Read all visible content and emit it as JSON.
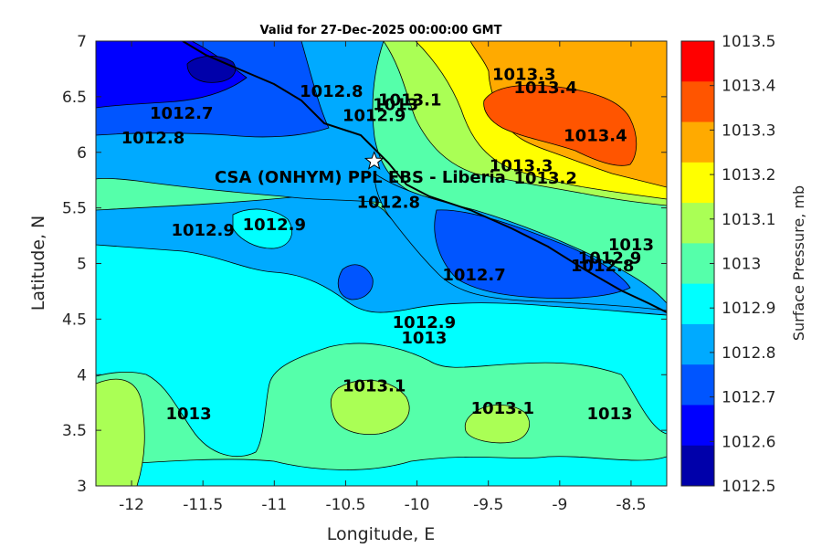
{
  "title": "Valid for 27-Dec-2025 00:00:00 GMT",
  "xlabel": "Longitude, E",
  "ylabel": "Latitude, N",
  "colorbar_label": "Surface Pressure, mb",
  "site_label": "CSA (ONHYM) PPL EBS  - Liberia",
  "site": {
    "lon": -10.3,
    "lat": 5.92
  },
  "x_ticks": [
    "-12",
    "-11.5",
    "-11",
    "-10.5",
    "-10",
    "-9.5",
    "-9",
    "-8.5"
  ],
  "y_ticks": [
    "7",
    "6.5",
    "6",
    "5.5",
    "5",
    "4.5",
    "4",
    "3.5",
    "3"
  ],
  "colorbar": {
    "ticks": [
      "1013.5",
      "1013.4",
      "1013.3",
      "1013.2",
      "1013.1",
      "1013",
      "1012.9",
      "1012.8",
      "1012.7",
      "1012.6",
      "1012.5"
    ],
    "colors": [
      "#ff0000",
      "#ff5500",
      "#ffaa00",
      "#ffff00",
      "#aaff55",
      "#55ffaa",
      "#00ffff",
      "#00aaff",
      "#0055ff",
      "#0000ff",
      "#0000aa"
    ]
  },
  "chart_data": {
    "type": "contour",
    "title": "Valid for 27-Dec-2025 00:00:00 GMT",
    "xlabel": "Longitude, E",
    "ylabel": "Latitude, N",
    "xlim": [
      -12.25,
      -8.25
    ],
    "ylim": [
      3,
      7
    ],
    "units": "mb",
    "levels": [
      1012.5,
      1012.6,
      1012.7,
      1012.8,
      1012.9,
      1013,
      1013.1,
      1013.2,
      1013.3,
      1013.4,
      1013.5
    ],
    "contour_labels": [
      {
        "text": "1012.7",
        "lon": -11.65,
        "lat": 6.3
      },
      {
        "text": "1012.8",
        "lon": -11.85,
        "lat": 6.08
      },
      {
        "text": "1012.8",
        "lon": -10.6,
        "lat": 6.5
      },
      {
        "text": "1012.9",
        "lon": -10.3,
        "lat": 6.28
      },
      {
        "text": "1013",
        "lon": -10.15,
        "lat": 6.38
      },
      {
        "text": "1013.1",
        "lon": -10.05,
        "lat": 6.42
      },
      {
        "text": "1013.3",
        "lon": -9.25,
        "lat": 6.65
      },
      {
        "text": "1013.4",
        "lon": -9.1,
        "lat": 6.53
      },
      {
        "text": "1013.4",
        "lon": -8.75,
        "lat": 6.1
      },
      {
        "text": "1013.3",
        "lon": -9.27,
        "lat": 5.83
      },
      {
        "text": "1013.2",
        "lon": -9.1,
        "lat": 5.72
      },
      {
        "text": "1012.8",
        "lon": -10.2,
        "lat": 5.5
      },
      {
        "text": "1012.9",
        "lon": -11.5,
        "lat": 5.25
      },
      {
        "text": "1012.9",
        "lon": -11.0,
        "lat": 5.3
      },
      {
        "text": "1012.7",
        "lon": -9.6,
        "lat": 4.85
      },
      {
        "text": "1013",
        "lon": -8.5,
        "lat": 5.12
      },
      {
        "text": "1012.9",
        "lon": -8.65,
        "lat": 5.0
      },
      {
        "text": "1012.8",
        "lon": -8.7,
        "lat": 4.93
      },
      {
        "text": "1012.9",
        "lon": -9.95,
        "lat": 4.42
      },
      {
        "text": "1013",
        "lon": -9.95,
        "lat": 4.28
      },
      {
        "text": "1013.1",
        "lon": -10.3,
        "lat": 3.85
      },
      {
        "text": "1013.1",
        "lon": -9.4,
        "lat": 3.65
      },
      {
        "text": "1013",
        "lon": -11.6,
        "lat": 3.6
      },
      {
        "text": "1013",
        "lon": -8.65,
        "lat": 3.6
      }
    ]
  }
}
